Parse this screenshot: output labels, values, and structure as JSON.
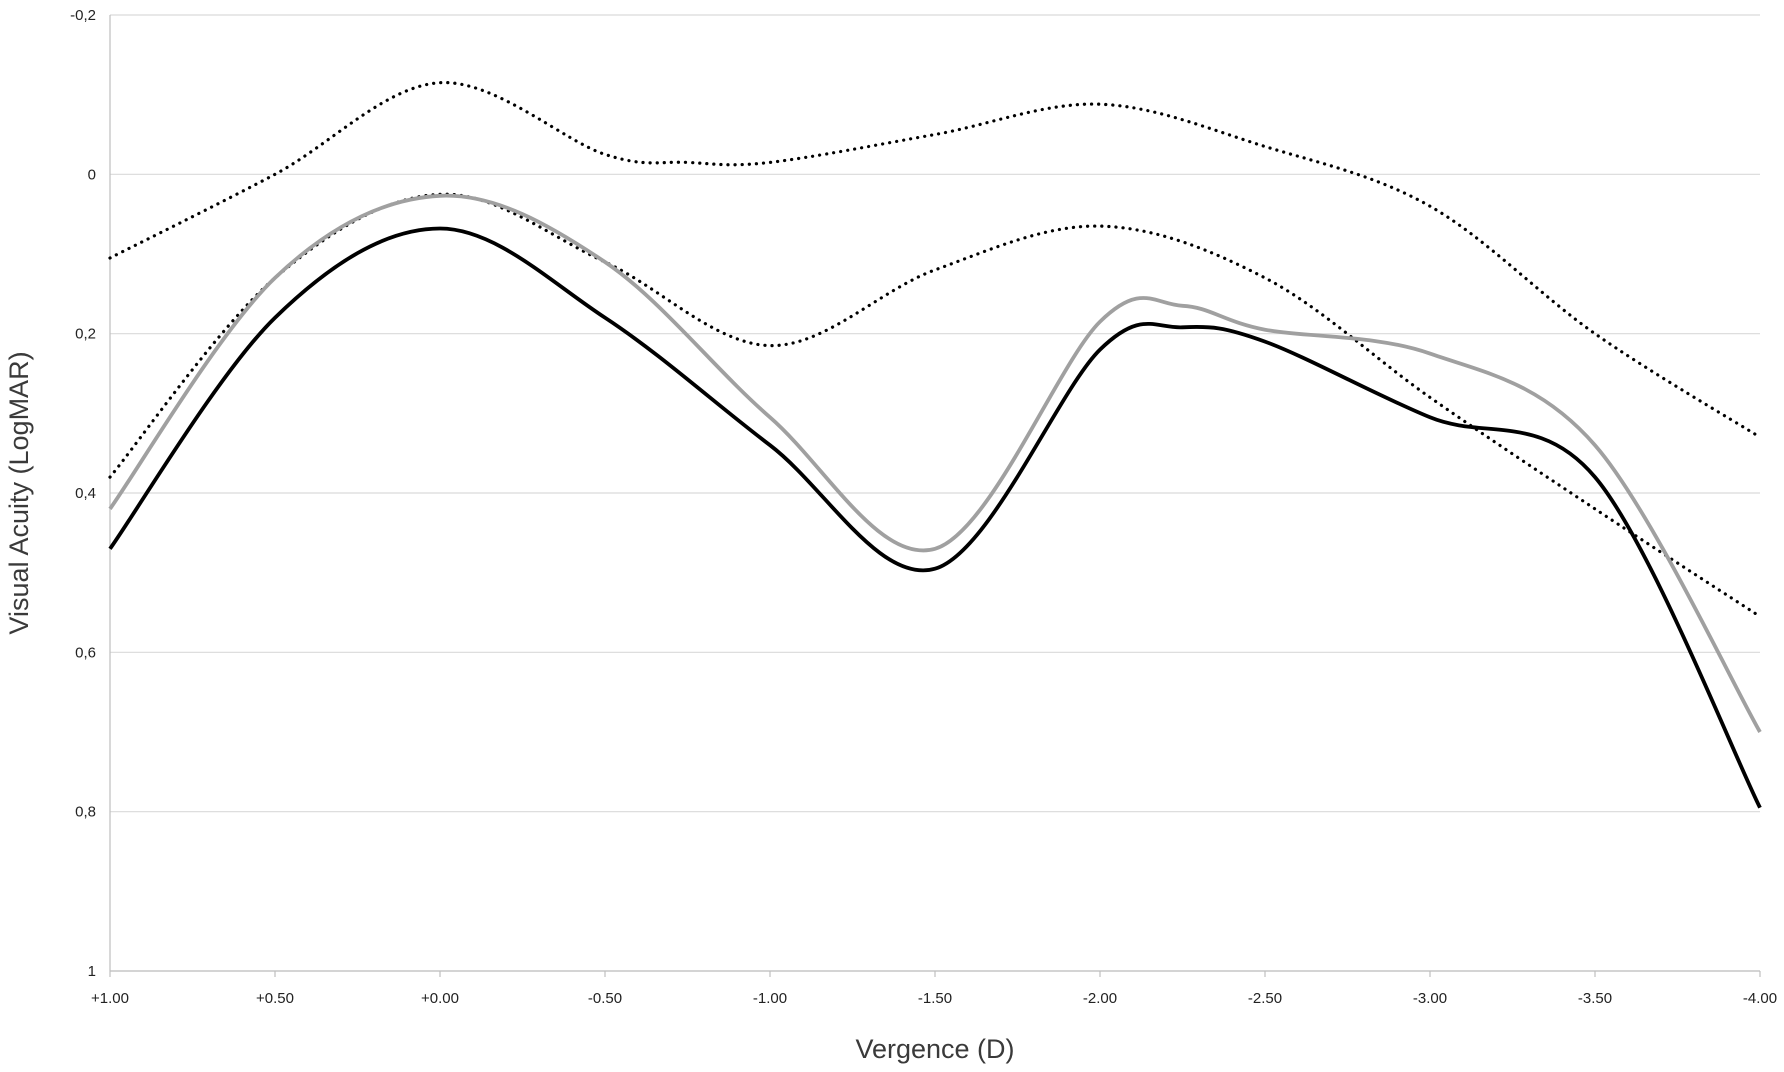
{
  "chart_data": {
    "type": "line",
    "title": "",
    "xlabel": "Vergence (D)",
    "ylabel": "Visual Acuity (LogMAR)",
    "x_tick_labels": [
      "+1.00",
      "+0.50",
      "+0.00",
      "-0.50",
      "-1.00",
      "-1.50",
      "-2.00",
      "-2.50",
      "-3.00",
      "-3.50",
      "-4.00"
    ],
    "y_tick_labels": [
      "-0,2",
      "0",
      "0,2",
      "0,4",
      "0,6",
      "0,8",
      "1"
    ],
    "xlim": [
      1.0,
      -4.0
    ],
    "ylim": [
      -0.2,
      1.0
    ],
    "y_inverted": true,
    "grid": "horizontal",
    "legend": "none",
    "series": [
      {
        "style": "dotted",
        "color": "#000000",
        "x": [
          1.0,
          0.5,
          0.0,
          -0.5,
          -0.75,
          -1.0,
          -1.5,
          -2.0,
          -2.5,
          -3.0,
          -3.5,
          -4.0
        ],
        "y": [
          0.105,
          0.0,
          -0.115,
          -0.025,
          -0.015,
          -0.015,
          -0.05,
          -0.088,
          -0.035,
          0.04,
          0.2,
          0.33
        ]
      },
      {
        "style": "dotted",
        "color": "#000000",
        "x": [
          1.0,
          0.5,
          0.0,
          -0.5,
          -1.0,
          -1.5,
          -2.0,
          -2.5,
          -3.0,
          -3.5,
          -4.0
        ],
        "y": [
          0.38,
          0.13,
          0.025,
          0.11,
          0.215,
          0.12,
          0.065,
          0.13,
          0.28,
          0.42,
          0.555
        ]
      },
      {
        "style": "solid",
        "color": "#a0a0a0",
        "x": [
          1.0,
          0.5,
          0.0,
          -0.5,
          -1.0,
          -1.5,
          -2.0,
          -2.25,
          -2.5,
          -3.0,
          -3.5,
          -4.0
        ],
        "y": [
          0.42,
          0.13,
          0.027,
          0.11,
          0.305,
          0.47,
          0.185,
          0.165,
          0.195,
          0.225,
          0.34,
          0.7
        ]
      },
      {
        "style": "solid",
        "color": "#000000",
        "x": [
          1.0,
          0.5,
          0.0,
          -0.5,
          -1.0,
          -1.5,
          -2.0,
          -2.25,
          -2.5,
          -3.0,
          -3.5,
          -4.0
        ],
        "y": [
          0.47,
          0.18,
          0.068,
          0.18,
          0.34,
          0.495,
          0.22,
          0.192,
          0.21,
          0.305,
          0.38,
          0.795
        ]
      }
    ]
  }
}
